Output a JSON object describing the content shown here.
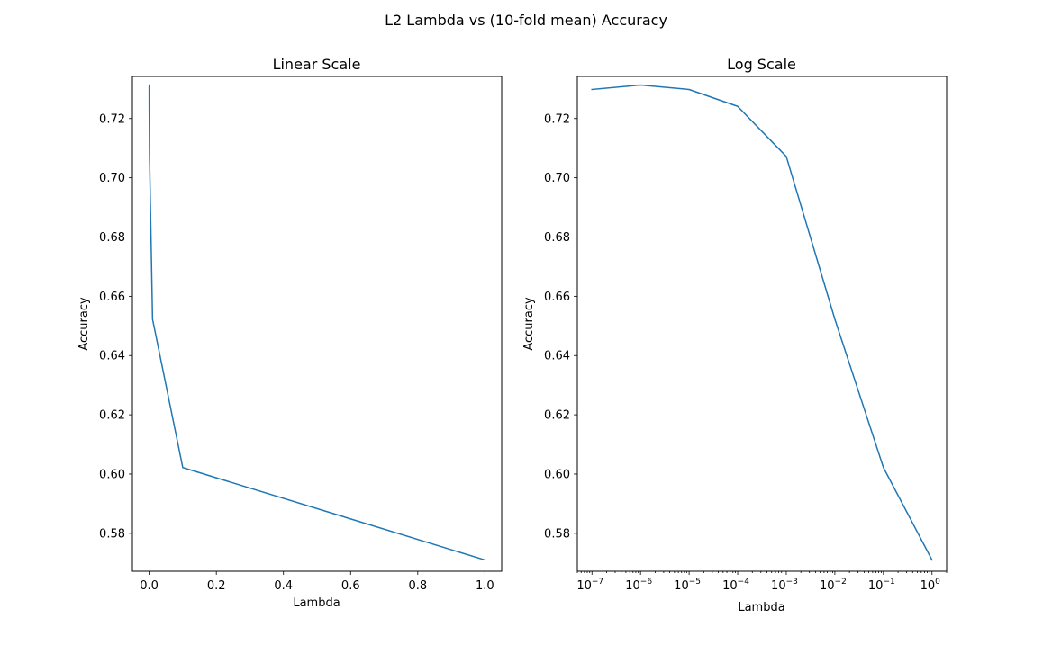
{
  "figure": {
    "title": "L2 Lambda vs (10-fold mean) Accuracy"
  },
  "chart_data": [
    {
      "type": "line",
      "title": "Linear Scale",
      "xlabel": "Lambda",
      "ylabel": "Accuracy",
      "xscale": "linear",
      "xlim": [
        -0.05,
        1.05
      ],
      "ylim": [
        0.5672,
        0.7342
      ],
      "x": [
        1e-07,
        1e-06,
        1e-05,
        0.0001,
        0.001,
        0.01,
        0.1,
        1
      ],
      "y": [
        0.7298,
        0.7313,
        0.7298,
        0.7241,
        0.7072,
        0.6523,
        0.6022,
        0.571
      ],
      "xticks": [
        0.0,
        0.2,
        0.4,
        0.6,
        0.8,
        1.0
      ],
      "xtick_labels": [
        "0.0",
        "0.2",
        "0.4",
        "0.6",
        "0.8",
        "1.0"
      ],
      "yticks": [
        0.58,
        0.6,
        0.62,
        0.64,
        0.66,
        0.68,
        0.7,
        0.72
      ],
      "ytick_labels": [
        "0.58",
        "0.60",
        "0.62",
        "0.64",
        "0.66",
        "0.68",
        "0.70",
        "0.72"
      ],
      "grid": false,
      "color": "#1f77b4"
    },
    {
      "type": "line",
      "title": "Log Scale",
      "xlabel": "Lambda",
      "ylabel": "Accuracy",
      "xscale": "log",
      "xlim": [
        5e-08,
        2
      ],
      "ylim": [
        0.5672,
        0.7342
      ],
      "x": [
        1e-07,
        1e-06,
        1e-05,
        0.0001,
        0.001,
        0.01,
        0.1,
        1
      ],
      "y": [
        0.7298,
        0.7313,
        0.7298,
        0.7241,
        0.7072,
        0.6523,
        0.6022,
        0.571
      ],
      "xticks": [
        1e-07,
        1e-06,
        1e-05,
        0.0001,
        0.001,
        0.01,
        0.1,
        1
      ],
      "xtick_labels": [
        "10−7",
        "10−6",
        "10−5",
        "10−4",
        "10−3",
        "10−2",
        "10−1",
        "100"
      ],
      "yticks": [
        0.58,
        0.6,
        0.62,
        0.64,
        0.66,
        0.68,
        0.7,
        0.72
      ],
      "ytick_labels": [
        "0.58",
        "0.60",
        "0.62",
        "0.64",
        "0.66",
        "0.68",
        "0.70",
        "0.72"
      ],
      "grid": false,
      "color": "#1f77b4"
    }
  ]
}
